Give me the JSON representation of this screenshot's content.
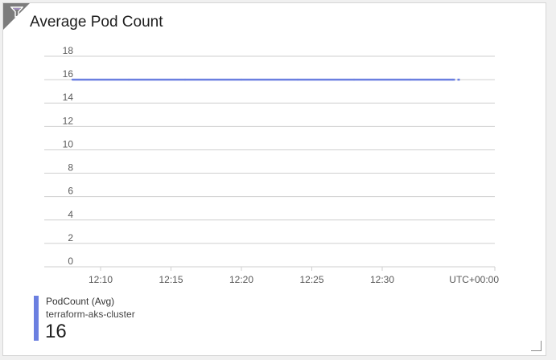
{
  "tile": {
    "title": "Average Pod Count"
  },
  "icons": {
    "filter": "filter-icon",
    "resize": "resize-handle"
  },
  "colors": {
    "series": "#6b7fe0",
    "grid": "#cfcfcf"
  },
  "chart_data": {
    "type": "line",
    "title": "Average Pod Count",
    "y_ticks": [
      "0",
      "2",
      "4",
      "6",
      "8",
      "10",
      "12",
      "14",
      "16",
      "18"
    ],
    "x_ticks": [
      "12:10",
      "12:15",
      "12:20",
      "12:25",
      "12:30"
    ],
    "timezone_label": "UTC+00:00",
    "ylim": [
      0,
      18
    ],
    "xlim": [
      "12:06",
      "12:38"
    ],
    "grid": true,
    "series": [
      {
        "name": "PodCount (Avg)",
        "resource": "terraform-aks-cluster",
        "color": "#6b7fe0",
        "x": [
          "12:08",
          "12:12",
          "12:16",
          "12:20",
          "12:24",
          "12:28",
          "12:32",
          "12:35"
        ],
        "values": [
          16,
          16,
          16,
          16,
          16,
          16,
          16,
          16
        ]
      }
    ]
  },
  "legend": {
    "name": "PodCount (Avg)",
    "resource": "terraform-aks-cluster",
    "value": "16"
  }
}
